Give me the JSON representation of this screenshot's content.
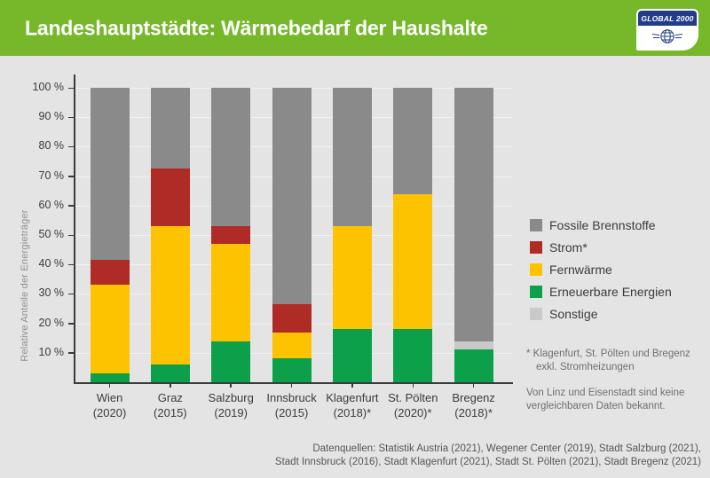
{
  "header": {
    "title": "Landeshauptstädte: Wärmebedarf der Haushalte"
  },
  "logo": {
    "text": "GLOBAL 2000"
  },
  "colors": {
    "header_green": "#76b82a",
    "logo_blue": "#203c8a",
    "background": "#e4e4e4",
    "axis_text": "#3b3b3b"
  },
  "chart_data": {
    "type": "bar",
    "stacked": true,
    "title": "",
    "xlabel": "",
    "ylabel": "Relative Anteile der Energieträger",
    "ylim": [
      0,
      100
    ],
    "ytick_step": 10,
    "ytick_suffix": " %",
    "grid": true,
    "legend_position": "right",
    "categories": [
      {
        "city": "Wien",
        "year": "(2020)"
      },
      {
        "city": "Graz",
        "year": "(2015)"
      },
      {
        "city": "Salzburg",
        "year": "(2019)"
      },
      {
        "city": "Innsbruck",
        "year": "(2015)"
      },
      {
        "city": "Klagenfurt",
        "year": "(2018)*"
      },
      {
        "city": "St. Pölten",
        "year": "(2020)*"
      },
      {
        "city": "Bregenz",
        "year": "(2018)*"
      }
    ],
    "series": [
      {
        "name": "Erneuerbare Energien",
        "color": "#0ca04b",
        "values": [
          3,
          6,
          14,
          8,
          18,
          18,
          11
        ]
      },
      {
        "name": "Fernwärme",
        "color": "#fdc300",
        "values": [
          30,
          47,
          33,
          9,
          35,
          46,
          0
        ]
      },
      {
        "name": "Strom*",
        "color": "#ae2b26",
        "values": [
          8.5,
          19.5,
          6,
          9.5,
          0,
          0,
          0
        ]
      },
      {
        "name": "Sonstige",
        "color": "#c9c9c9",
        "values": [
          0,
          0,
          0,
          0,
          0,
          0,
          3
        ]
      },
      {
        "name": "Fossile Brennstoffe",
        "color": "#8a8a8a",
        "values": [
          58.5,
          27.5,
          47,
          73.5,
          47,
          36,
          86
        ]
      }
    ],
    "legend_order": [
      "Fossile Brennstoffe",
      "Strom*",
      "Fernwärme",
      "Erneuerbare Energien",
      "Sonstige"
    ]
  },
  "notes": {
    "footnote1": "* Klagenfurt, St. Pölten und Bregenz exkl. Stromheizungen",
    "footnote2": "Von Linz und Eisenstadt sind keine vergleichbaren Daten bekannt."
  },
  "sources": {
    "line1": "Datenquellen: Statistik Austria (2021), Wegener Center (2019), Stadt Salzburg (2021),",
    "line2": "Stadt Innsbruck (2016), Stadt Klagenfurt (2021), Stadt St. Pölten (2021), Stadt Bregenz (2021)"
  }
}
